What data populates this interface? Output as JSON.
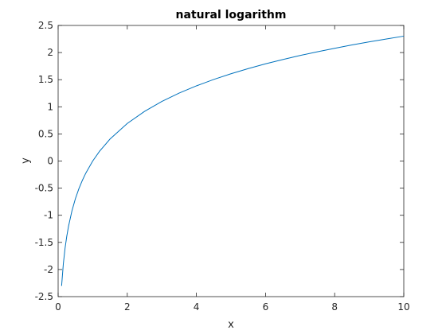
{
  "chart_data": {
    "type": "line",
    "title": "natural logarithm",
    "xlabel": "x",
    "ylabel": "y",
    "xlim": [
      0,
      10
    ],
    "ylim": [
      -2.5,
      2.5
    ],
    "xticks": [
      0,
      2,
      4,
      6,
      8,
      10
    ],
    "xtick_labels": [
      "0",
      "2",
      "4",
      "6",
      "8",
      "10"
    ],
    "yticks": [
      -2.5,
      -2,
      -1.5,
      -1,
      -0.5,
      0,
      0.5,
      1,
      1.5,
      2,
      2.5
    ],
    "ytick_labels": [
      "-2.5",
      "-2",
      "-1.5",
      "-1",
      "-0.5",
      "0",
      "0.5",
      "1",
      "1.5",
      "2",
      "2.5"
    ],
    "grid": false,
    "box": true,
    "series": [
      {
        "color": "#0072BD",
        "x": [
          0.1,
          0.15,
          0.2,
          0.25,
          0.3,
          0.4,
          0.5,
          0.6,
          0.7,
          0.8,
          1,
          1.2,
          1.5,
          2,
          2.5,
          3,
          3.5,
          4,
          4.5,
          5,
          5.5,
          6,
          6.5,
          7,
          7.5,
          8,
          8.5,
          9,
          9.5,
          10
        ],
        "y": [
          -2.303,
          -1.897,
          -1.609,
          -1.386,
          -1.204,
          -0.916,
          -0.693,
          -0.511,
          -0.357,
          -0.223,
          0,
          0.182,
          0.405,
          0.693,
          0.916,
          1.099,
          1.253,
          1.386,
          1.504,
          1.609,
          1.705,
          1.792,
          1.872,
          1.946,
          2.015,
          2.079,
          2.14,
          2.197,
          2.251,
          2.303
        ]
      }
    ]
  }
}
